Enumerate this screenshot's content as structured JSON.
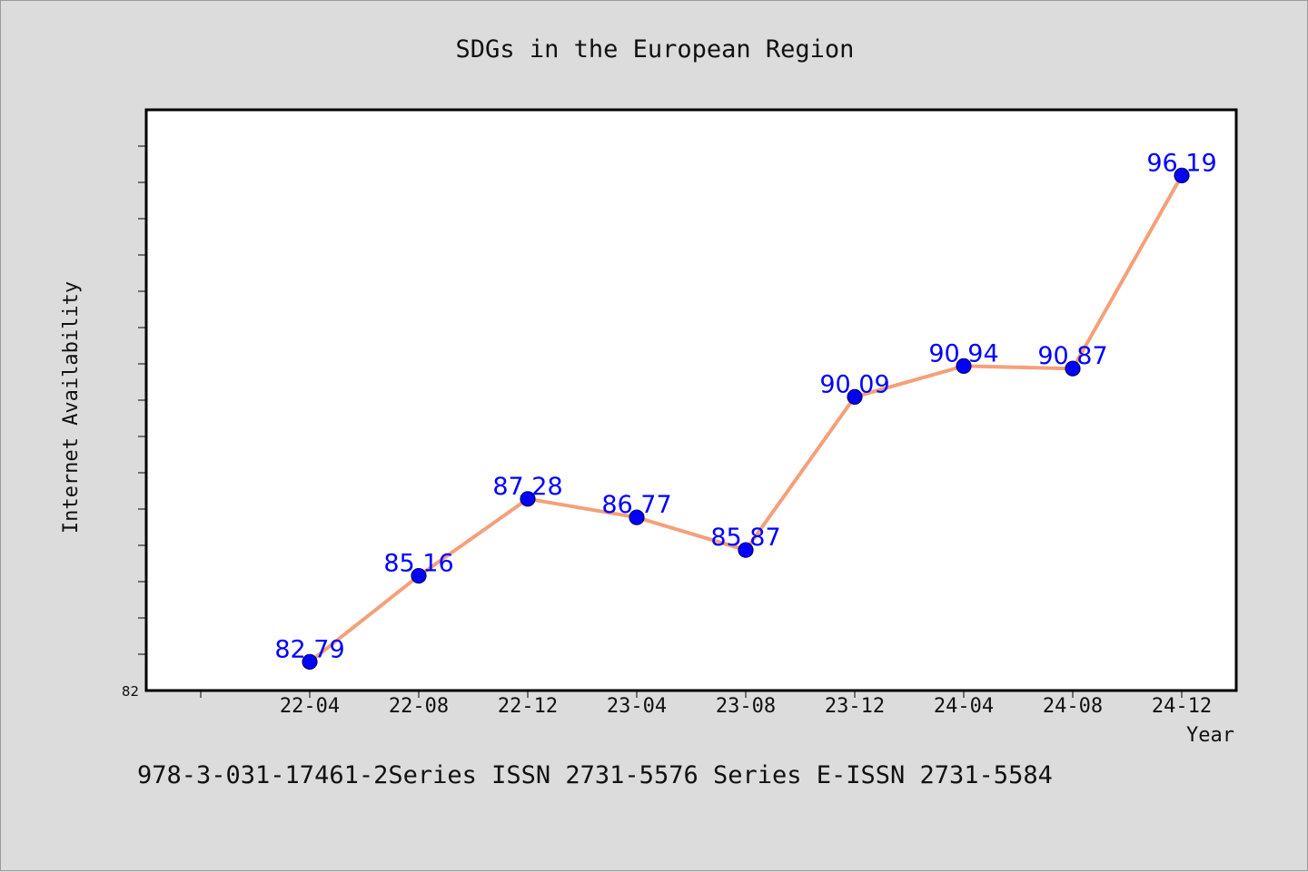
{
  "chart_data": {
    "type": "line",
    "title": "SDGs in the European Region",
    "xlabel": "Year",
    "ylabel": "Internet Availability",
    "categories": [
      "22-04",
      "22-08",
      "22-12",
      "23-04",
      "23-08",
      "23-12",
      "24-04",
      "24-08",
      "24-12"
    ],
    "series": [
      {
        "values": [
          82.79,
          85.16,
          87.28,
          86.77,
          85.87,
          90.09,
          90.94,
          90.87,
          96.19
        ],
        "data_labels": [
          "82.79",
          "85.16",
          "87.28",
          "86.77",
          "85.87",
          "90.09",
          "90.94",
          "90.87",
          "96.19"
        ]
      }
    ],
    "ylim": [
      82,
      98
    ],
    "y_min_label": "82",
    "grid": false,
    "line_color": "#f4a07a",
    "marker_color": "#0000ff",
    "label_color": "#0000ff"
  },
  "footer": {
    "text": "978-3-031-17461-2Series ISSN 2731-5576 Series E-ISSN 2731-5584"
  }
}
